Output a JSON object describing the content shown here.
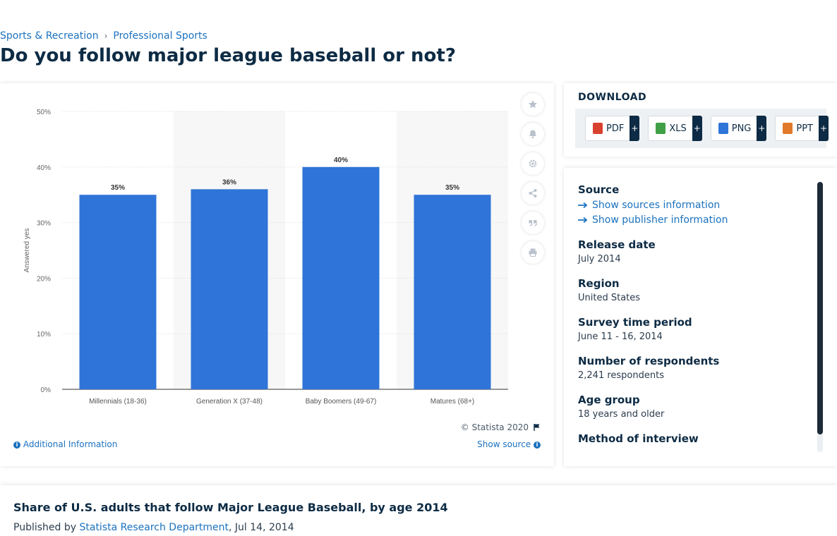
{
  "breadcrumb": {
    "items": [
      "Sports & Recreation",
      "Professional Sports"
    ],
    "separator": "›"
  },
  "page_title": "Do you follow major league baseball or not?",
  "chart_data": {
    "type": "bar",
    "categories": [
      "Millennials (18-36)",
      "Generation X (37-48)",
      "Baby Boomers (49-67)",
      "Matures (68+)"
    ],
    "values": [
      35,
      36,
      40,
      35
    ],
    "data_labels": [
      "35%",
      "36%",
      "40%",
      "35%"
    ],
    "ylabel": "Answered yes",
    "ylim": [
      0,
      50
    ],
    "yticks": [
      "0%",
      "10%",
      "20%",
      "30%",
      "40%",
      "50%"
    ],
    "grid": true,
    "bar_color": "#2f74d8",
    "band_color": "#f7f7f7"
  },
  "toolbar": {
    "icons": [
      "star-icon",
      "bell-icon",
      "gear-icon",
      "share-icon",
      "quote-icon",
      "print-icon"
    ]
  },
  "copyright": "© Statista 2020",
  "additional_info": "Additional Information",
  "show_source": "Show source",
  "download": {
    "title": "DOWNLOAD",
    "buttons": [
      {
        "label": "PDF",
        "color": "#d9412f"
      },
      {
        "label": "XLS",
        "color": "#3fa046"
      },
      {
        "label": "PNG",
        "color": "#2f74d8"
      },
      {
        "label": "PPT",
        "color": "#e07a2a"
      }
    ],
    "plus": "+"
  },
  "info": {
    "source_label": "Source",
    "show_sources": "Show sources information",
    "show_publisher": "Show publisher information",
    "release_date_label": "Release date",
    "release_date": "July 2014",
    "region_label": "Region",
    "region": "United States",
    "survey_period_label": "Survey time period",
    "survey_period": "June 11 - 16, 2014",
    "respondents_label": "Number of respondents",
    "respondents": "2,241 respondents",
    "age_group_label": "Age group",
    "age_group": "18 years and older",
    "method_label": "Method of interview"
  },
  "bottom": {
    "title": "Share of U.S. adults that follow Major League Baseball, by age 2014",
    "published_by": "Published by",
    "publisher": "Statista Research Department",
    "date": ", Jul 14, 2014"
  },
  "colors": {
    "accent": "#1b72bf",
    "navy": "#0d2b44"
  }
}
